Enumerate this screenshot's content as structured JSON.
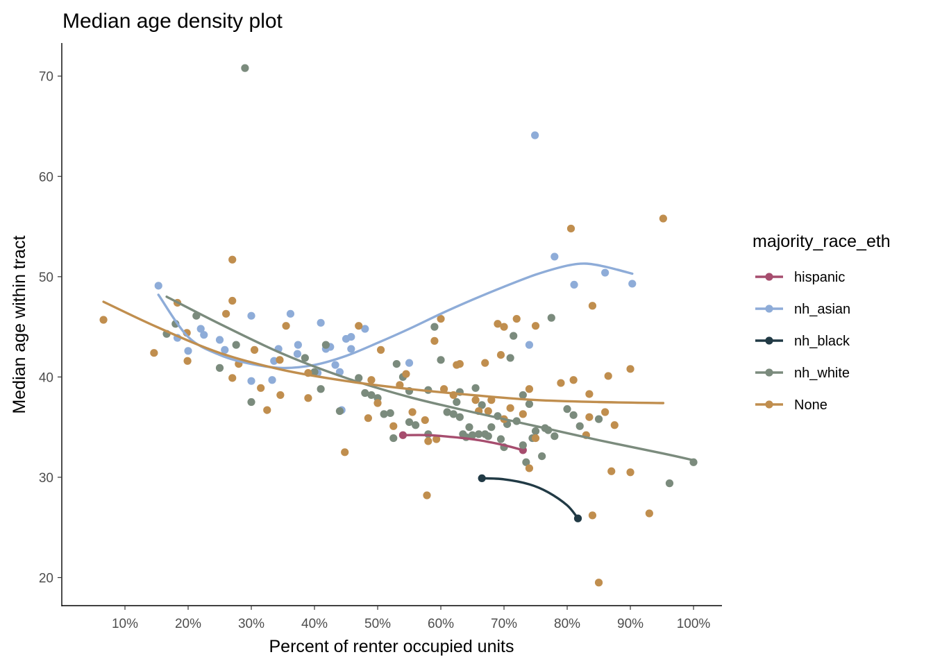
{
  "chart_data": {
    "type": "scatter",
    "title": "Median age density plot",
    "xlabel": "Percent of renter occupied units",
    "ylabel": "Median age within tract",
    "xlim": [
      0.0,
      1.045
    ],
    "ylim": [
      17.2,
      73.3
    ],
    "x_ticks": [
      0.1,
      0.2,
      0.3,
      0.4,
      0.5,
      0.6,
      0.7,
      0.8,
      0.9,
      1.0
    ],
    "x_tick_labels": [
      "10%",
      "20%",
      "30%",
      "40%",
      "50%",
      "60%",
      "70%",
      "80%",
      "90%",
      "100%"
    ],
    "y_ticks": [
      20,
      30,
      40,
      50,
      60,
      70
    ],
    "y_tick_labels": [
      "20",
      "30",
      "40",
      "50",
      "60",
      "70"
    ],
    "grid": false,
    "legend_position": "right",
    "legend": {
      "title": "majority_race_eth",
      "entries": [
        "hispanic",
        "nh_asian",
        "nh_black",
        "nh_white",
        "None"
      ]
    },
    "series": [
      {
        "name": "hispanic",
        "color": "#a64d6e",
        "points": [
          [
            0.54,
            34.2
          ],
          [
            0.73,
            32.7
          ]
        ],
        "smooth": [
          [
            0.54,
            34.2
          ],
          [
            0.58,
            34.2
          ],
          [
            0.62,
            34.0
          ],
          [
            0.66,
            33.7
          ],
          [
            0.7,
            33.2
          ],
          [
            0.73,
            32.7
          ]
        ]
      },
      {
        "name": "nh_asian",
        "color": "#8eacd8",
        "points": [
          [
            0.153,
            49.1
          ],
          [
            0.183,
            43.9
          ],
          [
            0.2,
            42.6
          ],
          [
            0.22,
            44.8
          ],
          [
            0.225,
            44.2
          ],
          [
            0.25,
            43.7
          ],
          [
            0.258,
            42.7
          ],
          [
            0.3,
            46.1
          ],
          [
            0.3,
            39.6
          ],
          [
            0.333,
            39.7
          ],
          [
            0.336,
            41.6
          ],
          [
            0.343,
            42.8
          ],
          [
            0.362,
            46.3
          ],
          [
            0.374,
            43.2
          ],
          [
            0.373,
            42.3
          ],
          [
            0.405,
            40.4
          ],
          [
            0.41,
            45.4
          ],
          [
            0.418,
            42.8
          ],
          [
            0.425,
            43.0
          ],
          [
            0.433,
            41.2
          ],
          [
            0.44,
            40.5
          ],
          [
            0.443,
            36.7
          ],
          [
            0.45,
            43.8
          ],
          [
            0.458,
            44.0
          ],
          [
            0.458,
            42.8
          ],
          [
            0.48,
            44.8
          ],
          [
            0.55,
            41.4
          ],
          [
            0.74,
            43.2
          ],
          [
            0.749,
            64.1
          ],
          [
            0.78,
            52.0
          ],
          [
            0.811,
            49.2
          ],
          [
            0.86,
            50.4
          ],
          [
            0.903,
            49.3
          ]
        ],
        "smooth": [
          [
            0.153,
            48.2
          ],
          [
            0.2,
            44.0
          ],
          [
            0.25,
            42.2
          ],
          [
            0.3,
            41.3
          ],
          [
            0.35,
            40.9
          ],
          [
            0.4,
            41.2
          ],
          [
            0.45,
            42.1
          ],
          [
            0.5,
            43.4
          ],
          [
            0.55,
            44.8
          ],
          [
            0.6,
            46.3
          ],
          [
            0.65,
            47.7
          ],
          [
            0.7,
            49.0
          ],
          [
            0.75,
            50.2
          ],
          [
            0.8,
            51.1
          ],
          [
            0.83,
            51.3
          ],
          [
            0.86,
            51.0
          ],
          [
            0.903,
            50.3
          ]
        ]
      },
      {
        "name": "nh_black",
        "color": "#213a45",
        "points": [
          [
            0.665,
            29.9
          ],
          [
            0.817,
            25.9
          ]
        ],
        "smooth": [
          [
            0.665,
            29.9
          ],
          [
            0.7,
            29.8
          ],
          [
            0.74,
            29.3
          ],
          [
            0.77,
            28.5
          ],
          [
            0.8,
            27.2
          ],
          [
            0.817,
            25.9
          ]
        ]
      },
      {
        "name": "nh_white",
        "color": "#7b8b7d",
        "points": [
          [
            0.166,
            44.3
          ],
          [
            0.18,
            45.3
          ],
          [
            0.213,
            46.1
          ],
          [
            0.25,
            40.9
          ],
          [
            0.276,
            43.2
          ],
          [
            0.29,
            70.8
          ],
          [
            0.3,
            37.5
          ],
          [
            0.385,
            41.9
          ],
          [
            0.4,
            40.5
          ],
          [
            0.41,
            38.8
          ],
          [
            0.418,
            43.2
          ],
          [
            0.44,
            36.6
          ],
          [
            0.47,
            39.9
          ],
          [
            0.48,
            38.4
          ],
          [
            0.49,
            38.2
          ],
          [
            0.5,
            37.9
          ],
          [
            0.51,
            36.3
          ],
          [
            0.52,
            36.4
          ],
          [
            0.525,
            33.9
          ],
          [
            0.53,
            41.3
          ],
          [
            0.54,
            40.0
          ],
          [
            0.55,
            38.6
          ],
          [
            0.55,
            35.5
          ],
          [
            0.56,
            35.2
          ],
          [
            0.58,
            38.7
          ],
          [
            0.58,
            34.3
          ],
          [
            0.59,
            45.0
          ],
          [
            0.6,
            41.7
          ],
          [
            0.61,
            36.5
          ],
          [
            0.62,
            36.3
          ],
          [
            0.625,
            37.5
          ],
          [
            0.63,
            38.5
          ],
          [
            0.63,
            36.0
          ],
          [
            0.635,
            34.3
          ],
          [
            0.64,
            34.0
          ],
          [
            0.645,
            35.0
          ],
          [
            0.65,
            34.2
          ],
          [
            0.655,
            38.9
          ],
          [
            0.66,
            34.3
          ],
          [
            0.665,
            37.2
          ],
          [
            0.67,
            34.3
          ],
          [
            0.675,
            34.1
          ],
          [
            0.68,
            35.0
          ],
          [
            0.69,
            36.1
          ],
          [
            0.695,
            33.8
          ],
          [
            0.7,
            33.0
          ],
          [
            0.705,
            35.3
          ],
          [
            0.71,
            41.9
          ],
          [
            0.715,
            44.1
          ],
          [
            0.72,
            35.6
          ],
          [
            0.73,
            38.2
          ],
          [
            0.73,
            33.2
          ],
          [
            0.735,
            31.5
          ],
          [
            0.74,
            37.3
          ],
          [
            0.745,
            33.9
          ],
          [
            0.75,
            34.6
          ],
          [
            0.76,
            32.1
          ],
          [
            0.765,
            34.9
          ],
          [
            0.77,
            34.7
          ],
          [
            0.775,
            45.9
          ],
          [
            0.78,
            34.1
          ],
          [
            0.8,
            36.8
          ],
          [
            0.81,
            36.2
          ],
          [
            0.82,
            35.1
          ],
          [
            0.85,
            35.8
          ],
          [
            0.962,
            29.4
          ],
          [
            1.0,
            31.5
          ]
        ],
        "smooth": [
          [
            0.166,
            48.0
          ],
          [
            0.25,
            45.3
          ],
          [
            0.35,
            42.3
          ],
          [
            0.45,
            39.9
          ],
          [
            0.55,
            38.0
          ],
          [
            0.65,
            36.5
          ],
          [
            0.75,
            35.1
          ],
          [
            0.85,
            33.7
          ],
          [
            0.95,
            32.4
          ],
          [
            1.0,
            31.7
          ]
        ]
      },
      {
        "name": "None",
        "color": "#c08e4e",
        "points": [
          [
            0.066,
            45.7
          ],
          [
            0.146,
            42.4
          ],
          [
            0.183,
            47.4
          ],
          [
            0.198,
            44.4
          ],
          [
            0.199,
            41.6
          ],
          [
            0.26,
            46.3
          ],
          [
            0.27,
            51.7
          ],
          [
            0.27,
            47.6
          ],
          [
            0.27,
            39.9
          ],
          [
            0.28,
            41.3
          ],
          [
            0.305,
            42.7
          ],
          [
            0.315,
            38.9
          ],
          [
            0.325,
            36.7
          ],
          [
            0.345,
            41.7
          ],
          [
            0.346,
            38.2
          ],
          [
            0.355,
            45.1
          ],
          [
            0.39,
            37.9
          ],
          [
            0.39,
            40.4
          ],
          [
            0.448,
            32.5
          ],
          [
            0.47,
            45.1
          ],
          [
            0.485,
            35.9
          ],
          [
            0.49,
            39.7
          ],
          [
            0.5,
            37.4
          ],
          [
            0.505,
            42.7
          ],
          [
            0.525,
            35.1
          ],
          [
            0.535,
            39.2
          ],
          [
            0.545,
            40.3
          ],
          [
            0.555,
            36.5
          ],
          [
            0.575,
            35.7
          ],
          [
            0.58,
            33.6
          ],
          [
            0.578,
            28.2
          ],
          [
            0.59,
            43.6
          ],
          [
            0.593,
            33.8
          ],
          [
            0.6,
            45.8
          ],
          [
            0.605,
            38.8
          ],
          [
            0.62,
            38.2
          ],
          [
            0.625,
            41.2
          ],
          [
            0.63,
            41.3
          ],
          [
            0.655,
            37.7
          ],
          [
            0.66,
            36.6
          ],
          [
            0.67,
            41.4
          ],
          [
            0.675,
            36.6
          ],
          [
            0.68,
            37.7
          ],
          [
            0.69,
            45.3
          ],
          [
            0.695,
            42.2
          ],
          [
            0.7,
            35.8
          ],
          [
            0.7,
            45.0
          ],
          [
            0.71,
            36.9
          ],
          [
            0.72,
            45.8
          ],
          [
            0.73,
            36.3
          ],
          [
            0.74,
            30.9
          ],
          [
            0.74,
            38.8
          ],
          [
            0.75,
            33.9
          ],
          [
            0.75,
            45.1
          ],
          [
            0.79,
            39.4
          ],
          [
            0.806,
            54.8
          ],
          [
            0.81,
            39.7
          ],
          [
            0.83,
            34.2
          ],
          [
            0.835,
            36.0
          ],
          [
            0.835,
            38.3
          ],
          [
            0.84,
            26.2
          ],
          [
            0.84,
            47.1
          ],
          [
            0.86,
            36.5
          ],
          [
            0.865,
            40.1
          ],
          [
            0.87,
            30.6
          ],
          [
            0.875,
            35.2
          ],
          [
            0.9,
            30.5
          ],
          [
            0.9,
            40.8
          ],
          [
            0.93,
            26.4
          ],
          [
            0.952,
            55.8
          ],
          [
            0.85,
            19.5
          ]
        ],
        "smooth": [
          [
            0.066,
            47.5
          ],
          [
            0.15,
            45.0
          ],
          [
            0.25,
            42.4
          ],
          [
            0.35,
            40.7
          ],
          [
            0.45,
            39.6
          ],
          [
            0.55,
            38.8
          ],
          [
            0.65,
            38.2
          ],
          [
            0.75,
            37.7
          ],
          [
            0.85,
            37.5
          ],
          [
            0.952,
            37.4
          ]
        ]
      }
    ]
  }
}
